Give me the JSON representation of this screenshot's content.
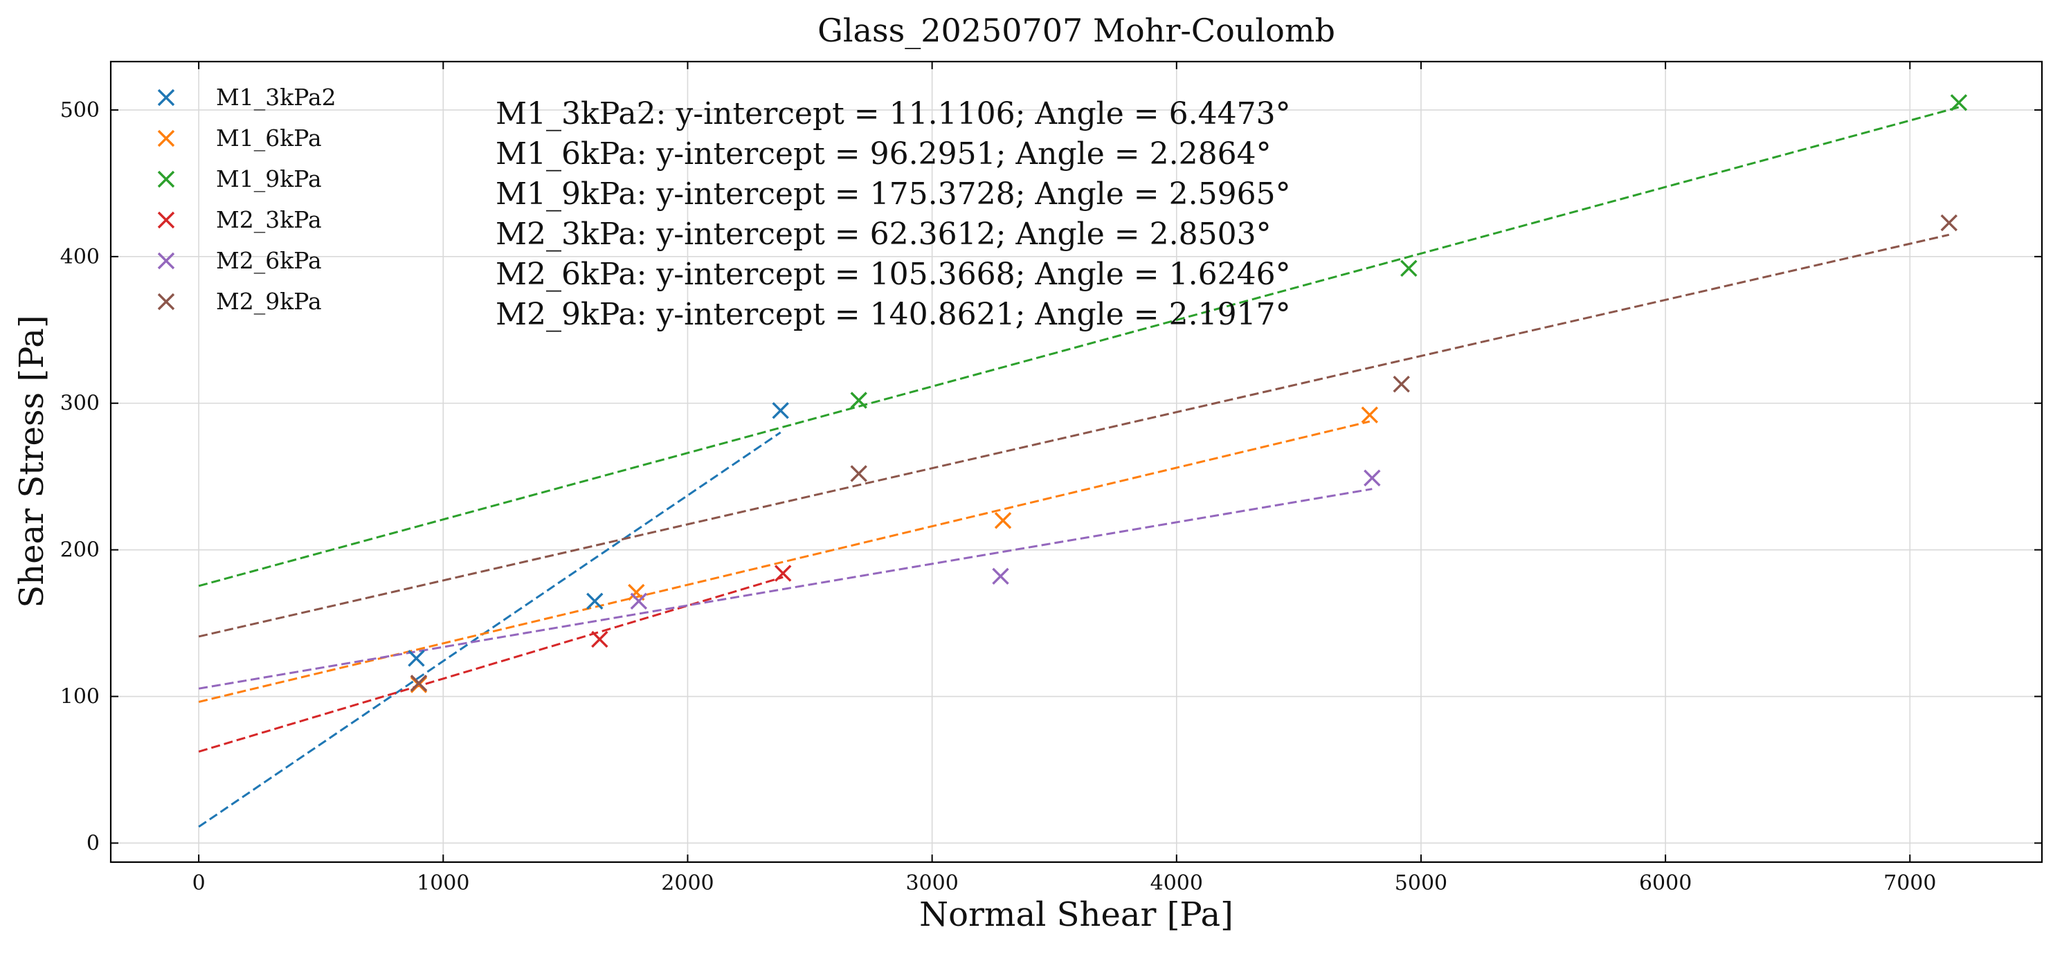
{
  "chart_data": {
    "type": "scatter",
    "title": "Glass_20250707 Mohr-Coulomb",
    "xlabel": "Normal Shear [Pa]",
    "ylabel": "Shear Stress [Pa]",
    "xlim": [
      -360,
      7540
    ],
    "ylim": [
      -13,
      533
    ],
    "xticks": [
      0,
      1000,
      2000,
      3000,
      4000,
      5000,
      6000,
      7000
    ],
    "yticks": [
      0,
      100,
      200,
      300,
      400,
      500
    ],
    "grid": true,
    "legend_position": "top-left",
    "series": [
      {
        "name": "M1_3kPa2",
        "color": "#1f77b4",
        "points": [
          [
            890,
            126
          ],
          [
            1620,
            165
          ],
          [
            2380,
            295
          ]
        ],
        "intercept": 11.1106,
        "angle_deg": 6.4473,
        "fit_x_range": [
          0,
          2380
        ]
      },
      {
        "name": "M1_6kPa",
        "color": "#ff7f0e",
        "points": [
          [
            900,
            108
          ],
          [
            1790,
            171
          ],
          [
            3290,
            220
          ],
          [
            4790,
            292
          ]
        ],
        "intercept": 96.2951,
        "angle_deg": 2.2864,
        "fit_x_range": [
          0,
          4790
        ]
      },
      {
        "name": "M1_9kPa",
        "color": "#2ca02c",
        "points": [
          [
            2700,
            302
          ],
          [
            4950,
            392
          ],
          [
            7200,
            505
          ]
        ],
        "intercept": 175.3728,
        "angle_deg": 2.5965,
        "fit_x_range": [
          0,
          7200
        ]
      },
      {
        "name": "M2_3kPa",
        "color": "#d62728",
        "points": [
          [
            900,
            109
          ],
          [
            1640,
            139
          ],
          [
            2390,
            184
          ]
        ],
        "intercept": 62.3612,
        "angle_deg": 2.8503,
        "fit_x_range": [
          0,
          2390
        ]
      },
      {
        "name": "M2_6kPa",
        "color": "#9467bd",
        "points": [
          [
            1800,
            165
          ],
          [
            3280,
            182
          ],
          [
            4800,
            249
          ]
        ],
        "intercept": 105.3668,
        "angle_deg": 1.6246,
        "fit_x_range": [
          0,
          4800
        ]
      },
      {
        "name": "M2_9kPa",
        "color": "#8c564b",
        "points": [
          [
            900,
            109
          ],
          [
            2700,
            252
          ],
          [
            4920,
            313
          ],
          [
            7160,
            423
          ]
        ],
        "intercept": 140.8621,
        "angle_deg": 2.1917,
        "fit_x_range": [
          0,
          7160
        ]
      }
    ],
    "annotations": [
      "M1_3kPa2: y-intercept = 11.1106; Angle = 6.4473°",
      "M1_6kPa: y-intercept = 96.2951; Angle = 2.2864°",
      "M1_9kPa: y-intercept = 175.3728; Angle = 2.5965°",
      "M2_3kPa: y-intercept = 62.3612; Angle = 2.8503°",
      "M2_6kPa: y-intercept = 105.3668; Angle = 1.6246°",
      "M2_9kPa: y-intercept = 140.8621; Angle = 2.1917°"
    ]
  }
}
